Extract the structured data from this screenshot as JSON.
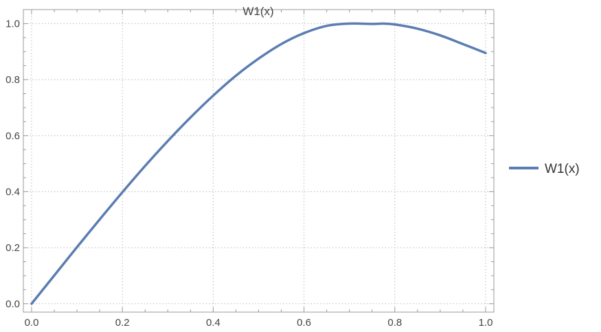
{
  "chart_data": {
    "type": "line",
    "title": "W1(x)",
    "xlim": [
      0.0,
      1.0
    ],
    "ylim": [
      -0.03,
      1.05
    ],
    "x_ticks": [
      "0.0",
      "0.2",
      "0.4",
      "0.6",
      "0.8",
      "1.0"
    ],
    "y_ticks": [
      "0.0",
      "0.2",
      "0.4",
      "0.6",
      "0.8",
      "1.0"
    ],
    "grid": true,
    "legend_position": "right",
    "colors": {
      "series": "#5b7db1",
      "grid": "#b8b8b8",
      "frame": "#999999"
    },
    "series": [
      {
        "name": "W1(x)",
        "x": [
          0.0,
          0.05,
          0.1,
          0.15,
          0.2,
          0.25,
          0.3,
          0.35,
          0.4,
          0.45,
          0.5,
          0.55,
          0.6,
          0.65,
          0.7,
          0.75,
          0.775,
          0.8,
          0.85,
          0.9,
          0.95,
          1.0
        ],
        "values": [
          0.0,
          0.101,
          0.202,
          0.301,
          0.398,
          0.492,
          0.581,
          0.665,
          0.743,
          0.814,
          0.875,
          0.927,
          0.966,
          0.992,
          1.0,
          0.999,
          1.0,
          0.997,
          0.982,
          0.958,
          0.927,
          0.895
        ]
      }
    ]
  }
}
